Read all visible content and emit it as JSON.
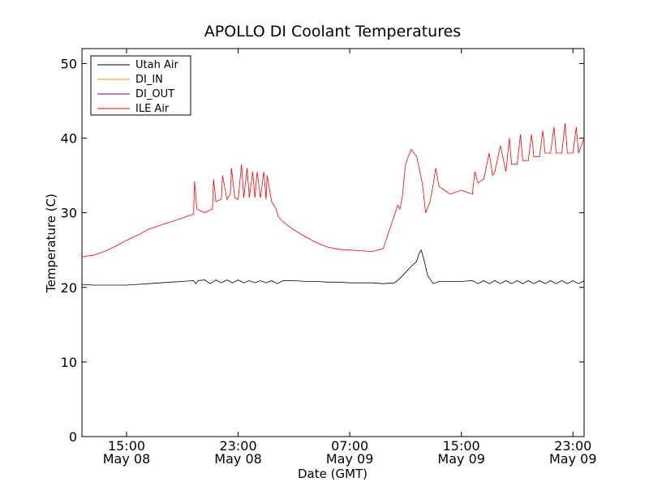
{
  "chart_data": {
    "type": "line",
    "title": "APOLLO DI Coolant Temperatures",
    "xlabel": "Date (GMT)",
    "ylabel": "Temperature (C)",
    "xlim": [
      0,
      45
    ],
    "ylim": [
      0,
      52
    ],
    "y_ticks": [
      0,
      10,
      20,
      30,
      40,
      50
    ],
    "x_ticks": [
      {
        "x": 4,
        "line1": "15:00",
        "line2": "May 08"
      },
      {
        "x": 14,
        "line1": "23:00",
        "line2": "May 08"
      },
      {
        "x": 24,
        "line1": "07:00",
        "line2": "May 09"
      },
      {
        "x": 34,
        "line1": "15:00",
        "line2": "May 09"
      },
      {
        "x": 44,
        "line1": "23:00",
        "line2": "May 09"
      }
    ],
    "x_units": "hours since 11:00 May 08 GMT",
    "legend_position": "upper-left",
    "series": [
      {
        "name": "Utah Air",
        "color": "#000000",
        "x": [
          0,
          1,
          2,
          3,
          4,
          5,
          6,
          7,
          8,
          9,
          10,
          10.2,
          10.4,
          11,
          11.5,
          12,
          12.5,
          13,
          13.5,
          14,
          14.5,
          15,
          15.5,
          16,
          16.5,
          17,
          17.5,
          18,
          18.5,
          19,
          20,
          21,
          22,
          23,
          24,
          25,
          26,
          27,
          28,
          28.5,
          29,
          29.5,
          30,
          30.2,
          30.4,
          30.6,
          31,
          31.5,
          32,
          33,
          34,
          35,
          35.5,
          36,
          36.5,
          37,
          37.5,
          38,
          38.5,
          39,
          39.5,
          40,
          40.5,
          41,
          41.5,
          42,
          42.5,
          43,
          43.5,
          44,
          44.5,
          45
        ],
        "y": [
          20.4,
          20.3,
          20.3,
          20.3,
          20.3,
          20.4,
          20.5,
          20.6,
          20.7,
          20.8,
          20.9,
          20.5,
          20.9,
          21.0,
          20.5,
          21.0,
          20.6,
          21.0,
          20.6,
          21.0,
          20.6,
          20.9,
          20.6,
          20.9,
          20.6,
          20.9,
          20.5,
          20.9,
          20.9,
          20.9,
          20.8,
          20.8,
          20.7,
          20.7,
          20.6,
          20.6,
          20.6,
          20.5,
          20.6,
          21.2,
          22.0,
          22.8,
          23.5,
          24.5,
          25.0,
          24.0,
          21.5,
          20.5,
          20.8,
          20.8,
          20.8,
          20.9,
          20.5,
          20.9,
          20.5,
          20.9,
          20.5,
          20.9,
          20.5,
          20.9,
          20.5,
          20.9,
          20.5,
          20.9,
          20.5,
          20.9,
          20.5,
          20.9,
          20.5,
          20.9,
          20.5,
          20.9
        ]
      },
      {
        "name": "DI_IN",
        "color": "#e8a000",
        "x": [],
        "y": []
      },
      {
        "name": "DI_OUT",
        "color": "#800080",
        "x": [],
        "y": []
      },
      {
        "name": "ILE Air",
        "color": "#ff0000",
        "x": [
          0,
          1,
          2,
          3,
          4,
          5,
          6,
          7,
          8,
          9,
          10,
          10.1,
          10.3,
          11,
          11.7,
          11.8,
          12,
          12.5,
          12.6,
          13,
          13.3,
          13.4,
          13.7,
          14,
          14.3,
          14.5,
          14.8,
          15.0,
          15.3,
          15.5,
          15.7,
          16,
          16.3,
          16.5,
          16.6,
          17,
          17.4,
          17.6,
          18,
          19,
          20,
          21,
          22,
          23,
          24,
          25,
          26,
          27,
          28.3,
          28.5,
          28.7,
          29,
          29.5,
          30,
          30.5,
          30.8,
          31.2,
          31.5,
          31.7,
          32,
          32.5,
          33,
          34,
          35,
          35.2,
          35.5,
          36,
          36.5,
          36.8,
          37,
          37.5,
          38,
          38.3,
          38.5,
          39,
          39.3,
          39.5,
          40,
          40.3,
          40.5,
          41,
          41.3,
          41.5,
          42,
          42.3,
          42.5,
          43,
          43.3,
          43.5,
          44,
          44.3,
          44.5,
          45
        ],
        "y": [
          24.1,
          24.3,
          24.8,
          25.5,
          26.3,
          27.0,
          27.8,
          28.3,
          28.8,
          29.3,
          29.8,
          34.2,
          30.5,
          30.0,
          30.5,
          34.5,
          31.5,
          31.8,
          35.0,
          31.8,
          32.5,
          36.0,
          32.0,
          31.8,
          36.5,
          32.0,
          36.0,
          32.0,
          35.5,
          32.0,
          35.5,
          32.0,
          35.5,
          31.8,
          35.0,
          31.5,
          30.5,
          29.5,
          28.8,
          27.7,
          26.8,
          26.0,
          25.4,
          25.1,
          25.0,
          24.9,
          24.8,
          25.2,
          31.0,
          30.5,
          32.0,
          36.5,
          38.5,
          37.5,
          34.0,
          30.0,
          31.5,
          34.0,
          36.0,
          33.5,
          33.0,
          32.5,
          33.0,
          32.5,
          35.5,
          34.0,
          34.5,
          38.0,
          35.0,
          35.5,
          39.0,
          35.5,
          40.0,
          36.5,
          36.5,
          40.5,
          37.0,
          37.0,
          40.5,
          37.5,
          37.5,
          41.0,
          38.0,
          38.0,
          41.5,
          38.0,
          38.0,
          42.0,
          38.0,
          38.0,
          41.5,
          38.0,
          40.0
        ]
      }
    ]
  }
}
